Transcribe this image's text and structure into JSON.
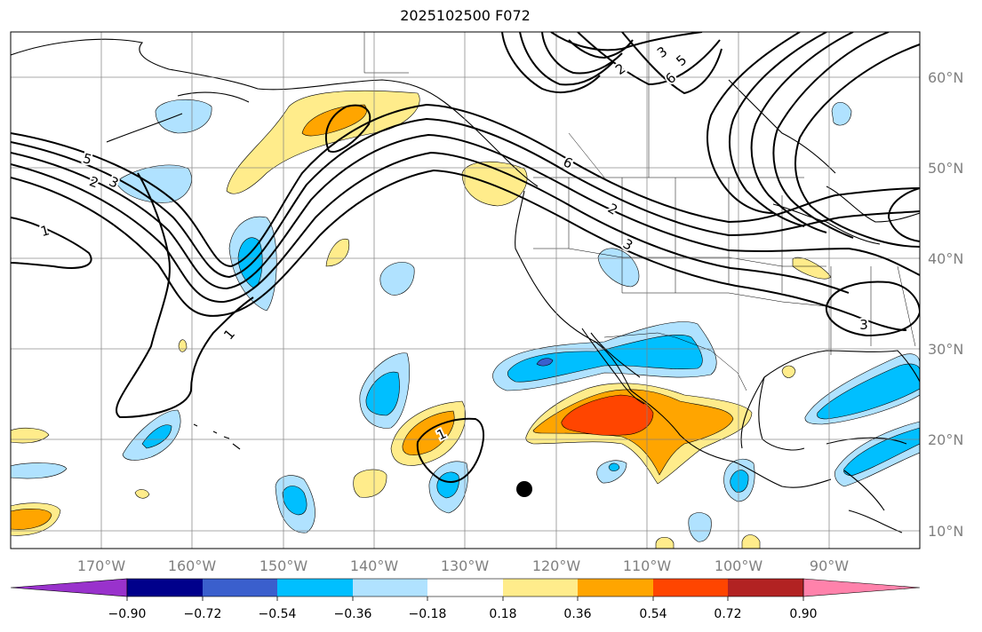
{
  "title": "2025102500 F072",
  "lon_labels": [
    "170°W",
    "160°W",
    "150°W",
    "140°W",
    "130°W",
    "120°W",
    "110°W",
    "100°W",
    "90°W"
  ],
  "lat_labels": [
    "60°N",
    "50°N",
    "40°N",
    "30°N",
    "20°N",
    "10°N"
  ],
  "colorbar": {
    "ticks": [
      "−0.90",
      "−0.72",
      "−0.54",
      "−0.36",
      "−0.18",
      "0.18",
      "0.36",
      "0.54",
      "0.72",
      "0.90"
    ],
    "colors": [
      "#9932cc",
      "#00008b",
      "#3a5fcd",
      "#00bfff",
      "#b0e2ff",
      "#ffffff",
      "#ffec8b",
      "#ffa500",
      "#ff4500",
      "#b22222",
      "#ff82ab"
    ]
  },
  "contour_labels": [
    "5",
    "2",
    "3",
    "1",
    "1",
    "1",
    "6",
    "2",
    "3",
    "5",
    "6",
    "2",
    "3",
    "3"
  ],
  "marker": "storm-position-dot"
}
